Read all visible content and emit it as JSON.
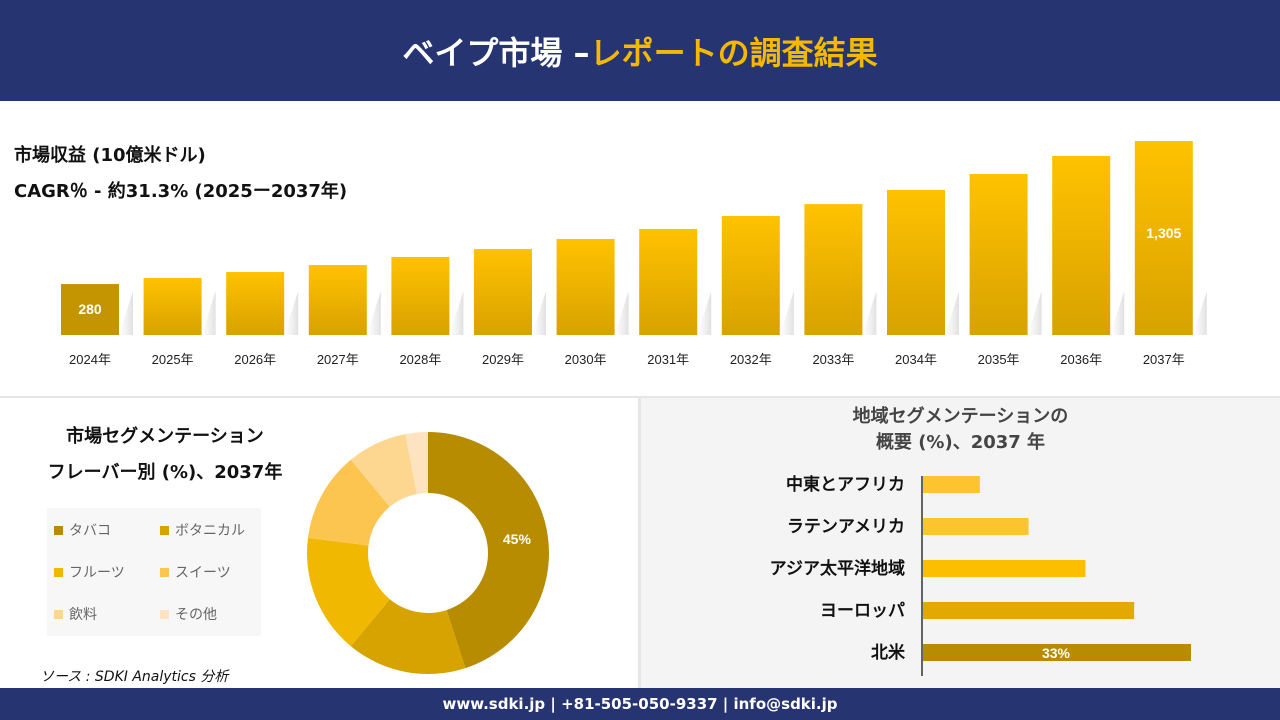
{
  "header": {
    "title_white": "ベイプ市場 –",
    "title_yellow": "レポートの調査結果"
  },
  "revenue": {
    "title": "市場収益 (10億米ドル)",
    "cagr": "CAGR％ - 約31.3% (2025ー2037年)"
  },
  "colors": {
    "navy": "#263472",
    "yellow": "#f5b800",
    "dark_gold": "#b88c00"
  },
  "chart_data": [
    {
      "type": "bar",
      "title": "市場収益 (10億米ドル)",
      "categories": [
        "2024年",
        "2025年",
        "2026年",
        "2027年",
        "2028年",
        "2029年",
        "2030年",
        "2031年",
        "2032年",
        "2033年",
        "2034年",
        "2035年",
        "2036年",
        "2037年"
      ],
      "values": [
        280,
        323,
        366,
        416,
        474,
        531,
        603,
        675,
        768,
        853,
        954,
        1069,
        1198,
        1305
      ],
      "data_labels": {
        "0": "280",
        "13": "1,305"
      }
    },
    {
      "type": "pie",
      "title": "市場セグメンテーション フレーバー別 (%)、2037年",
      "categories": [
        "タバコ",
        "ボタニカル",
        "フルーツ",
        "スイーツ",
        "飲料",
        "その他"
      ],
      "values": [
        45,
        16,
        16,
        12,
        8,
        3
      ],
      "colors": [
        "#b88c00",
        "#d6a300",
        "#f0b800",
        "#fcc550",
        "#fdd68f",
        "#fde3c0"
      ],
      "data_labels": {
        "0": "45%"
      },
      "legend": "left"
    },
    {
      "type": "bar",
      "orientation": "horizontal",
      "title": "地域セグメンテーションの 概要 (%)、2037 年",
      "categories": [
        "中東とアフリカ",
        "ラテンアメリカ",
        "アジア太平洋地域",
        "ヨーロッパ",
        "北米"
      ],
      "values": [
        7,
        13,
        20,
        26,
        33
      ],
      "colors": [
        "#fcc530",
        "#fcc530",
        "#fcbf00",
        "#e2aa00",
        "#b88c00"
      ],
      "data_labels": {
        "4": "33%"
      }
    }
  ],
  "segment": {
    "title1": "市場セグメンテーション",
    "title2": "フレーバー別 (%)、2037年"
  },
  "region": {
    "title1": "地域セグメンテーションの",
    "title2": "概要 (%)、2037 年"
  },
  "source": "ソース : SDKI Analytics 分析",
  "footer": "www.sdki.jp | +81-505-050-9337 | info@sdki.jp"
}
